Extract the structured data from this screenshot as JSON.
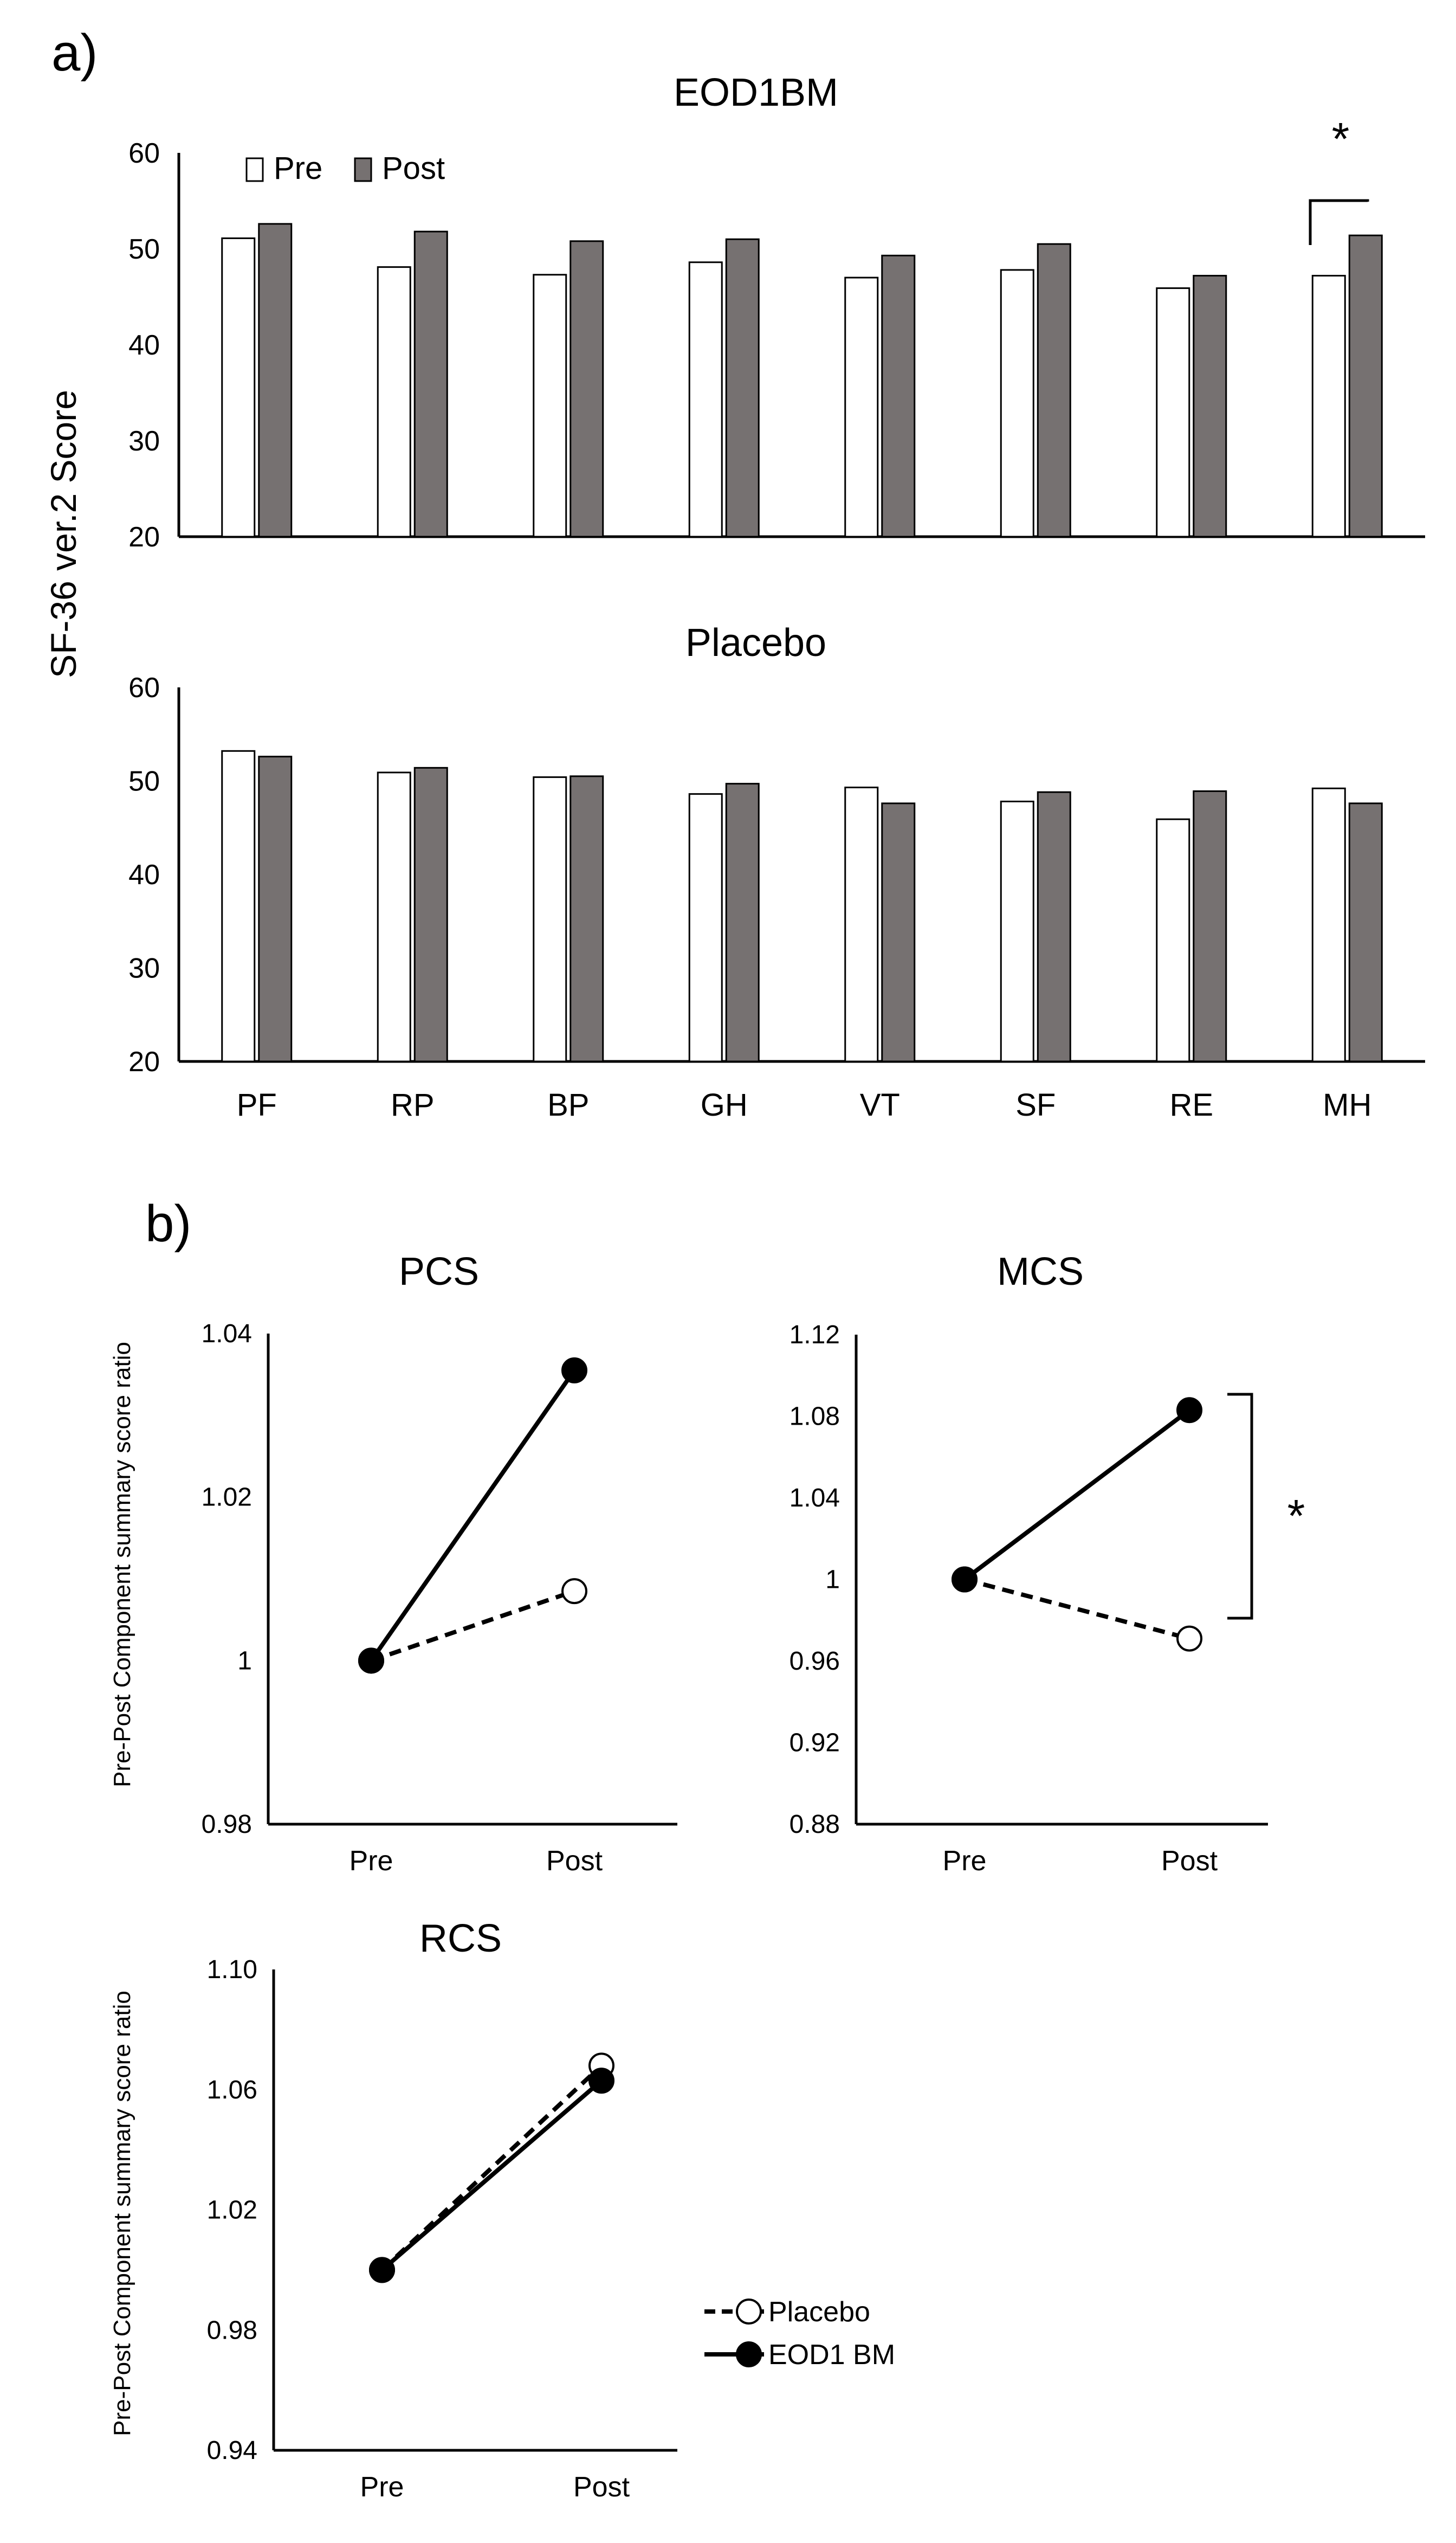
{
  "panel_a": {
    "label": "a)",
    "y_axis_label": "SF-36 ver.2 Score",
    "legend": {
      "pre": "Pre",
      "post": "Post"
    },
    "significance_mark": "*"
  },
  "panel_b": {
    "label": "b)",
    "y_axis_label": "Pre-Post Component summary score ratio",
    "legend": {
      "placebo": "Placebo",
      "eod1bm": "EOD1 BM"
    },
    "mcs_significance_mark": "*"
  },
  "colors": {
    "pre_fill": "#ffffff",
    "post_fill": "#767171",
    "ink": "#000000"
  },
  "chart_data": [
    {
      "id": "eod1bm",
      "type": "bar",
      "title": "EOD1BM",
      "categories": [
        "PF",
        "RP",
        "BP",
        "GH",
        "VT",
        "SF",
        "RE",
        "MH"
      ],
      "series": [
        {
          "name": "Pre",
          "values": [
            51.1,
            48.1,
            47.3,
            48.6,
            47.0,
            47.8,
            45.9,
            47.2
          ]
        },
        {
          "name": "Post",
          "values": [
            52.6,
            51.8,
            50.8,
            51.0,
            49.3,
            50.5,
            47.2,
            51.4
          ]
        }
      ],
      "ylim": [
        20,
        60
      ],
      "yticks": [
        "20",
        "30",
        "40",
        "50",
        "60"
      ],
      "xlabel": "",
      "ylabel": "SF-36 ver.2 Score",
      "significance": [
        {
          "category": "MH",
          "label": "*"
        }
      ]
    },
    {
      "id": "placebo",
      "type": "bar",
      "title": "Placebo",
      "categories": [
        "PF",
        "RP",
        "BP",
        "GH",
        "VT",
        "SF",
        "RE",
        "MH"
      ],
      "series": [
        {
          "name": "Pre",
          "values": [
            53.2,
            50.9,
            50.4,
            48.6,
            49.3,
            47.8,
            45.9,
            49.2
          ]
        },
        {
          "name": "Post",
          "values": [
            52.6,
            51.4,
            50.5,
            49.7,
            47.6,
            48.8,
            48.9,
            47.6
          ]
        }
      ],
      "ylim": [
        20,
        60
      ],
      "yticks": [
        "20",
        "30",
        "40",
        "50",
        "60"
      ],
      "xlabel": "",
      "ylabel": "SF-36 ver.2 Score"
    },
    {
      "id": "pcs",
      "type": "line",
      "title": "PCS",
      "x": [
        "Pre",
        "Post"
      ],
      "series": [
        {
          "name": "Placebo",
          "values": [
            1.0,
            1.0085
          ]
        },
        {
          "name": "EOD1 BM",
          "values": [
            1.0,
            1.0355
          ]
        }
      ],
      "ylim": [
        0.98,
        1.04
      ],
      "yticks": [
        "0.98",
        "1",
        "1.02",
        "1.04"
      ],
      "ylabel": "Pre-Post Component summary score ratio"
    },
    {
      "id": "mcs",
      "type": "line",
      "title": "MCS",
      "x": [
        "Pre",
        "Post"
      ],
      "series": [
        {
          "name": "Placebo",
          "values": [
            1.0,
            0.971
          ]
        },
        {
          "name": "EOD1 BM",
          "values": [
            1.0,
            1.083
          ]
        }
      ],
      "ylim": [
        0.88,
        1.12
      ],
      "yticks": [
        "0.88",
        "0.92",
        "0.96",
        "1",
        "1.04",
        "1.08",
        "1.12"
      ],
      "ylabel": "",
      "significance": [
        {
          "between": [
            "Placebo",
            "EOD1 BM"
          ],
          "at": "Post",
          "label": "*"
        }
      ]
    },
    {
      "id": "rcs",
      "type": "line",
      "title": "RCS",
      "x": [
        "Pre",
        "Post"
      ],
      "series": [
        {
          "name": "Placebo",
          "values": [
            1.0,
            1.068
          ]
        },
        {
          "name": "EOD1 BM",
          "values": [
            1.0,
            1.063
          ]
        }
      ],
      "ylim": [
        0.94,
        1.1
      ],
      "yticks": [
        "0.94",
        "0.98",
        "1.02",
        "1.06",
        "1.10"
      ],
      "ylabel": "Pre-Post Component summary score ratio"
    }
  ]
}
